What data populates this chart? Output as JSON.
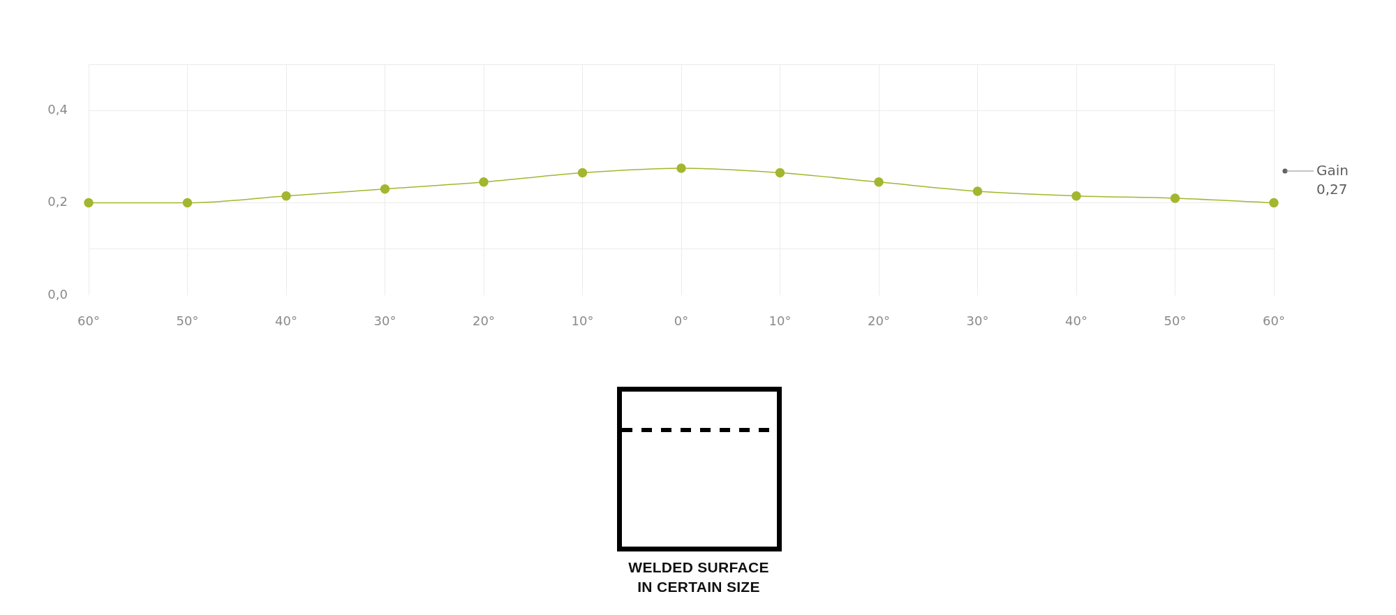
{
  "chart_data": {
    "type": "line",
    "categories": [
      "60°",
      "50°",
      "40°",
      "30°",
      "20°",
      "10°",
      "0°",
      "10°",
      "20°",
      "30°",
      "40°",
      "50°",
      "60°"
    ],
    "series": [
      {
        "color": "#a3b62e",
        "values": [
          0.2,
          0.2,
          0.215,
          0.23,
          0.245,
          0.265,
          0.275,
          0.265,
          0.245,
          0.225,
          0.215,
          0.21,
          0.2
        ]
      }
    ],
    "ylim": [
      0,
      0.5
    ],
    "yticks": [
      {
        "value": 0,
        "label": "0,0"
      },
      {
        "value": 0.1,
        "label": null
      },
      {
        "value": 0.2,
        "label": "0,2"
      },
      {
        "value": 0.4,
        "label": "0,4"
      },
      {
        "value": 0.5,
        "label": null
      }
    ],
    "grid": true,
    "marker": "circle",
    "annotations": [
      "Gain\n0,27",
      "WELDED SURFACE\nIN CERTAIN SIZE"
    ]
  }
}
